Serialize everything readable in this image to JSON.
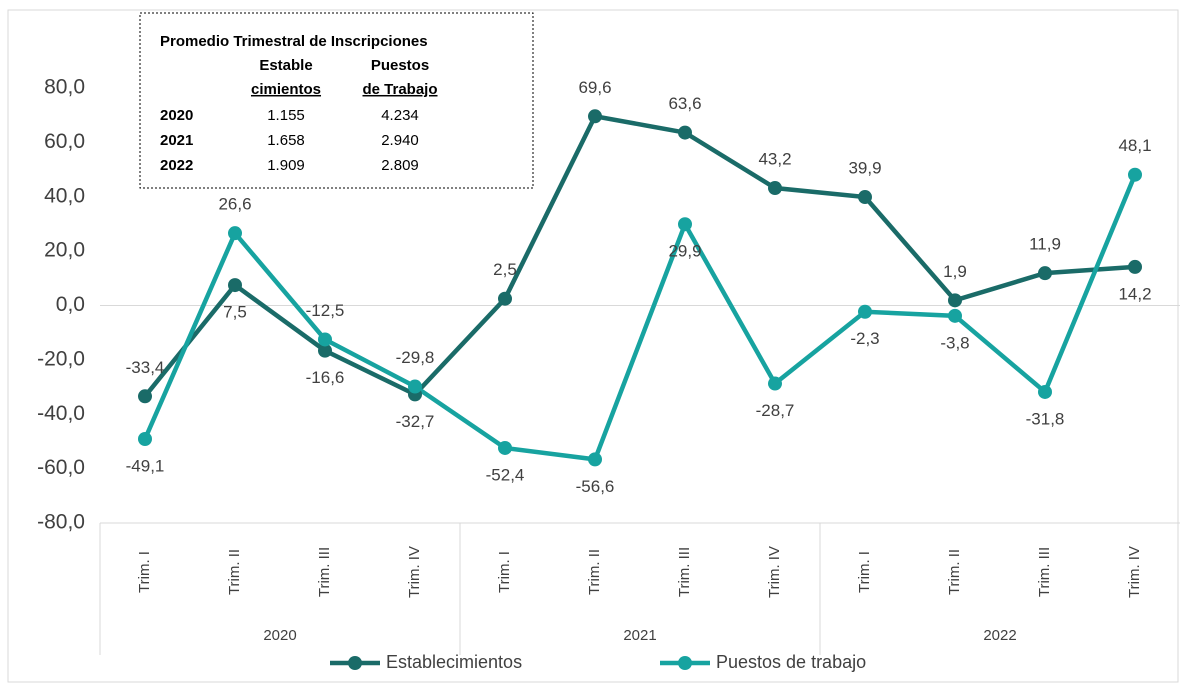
{
  "chart_data": {
    "type": "line",
    "categories": [
      "Trim. I",
      "Trim. II",
      "Trim. III",
      "Trim. IV",
      "Trim. I",
      "Trim. II",
      "Trim. III",
      "Trim. IV",
      "Trim. I",
      "Trim. II",
      "Trim. III",
      "Trim. IV"
    ],
    "groups": [
      "2020",
      "2021",
      "2022"
    ],
    "series": [
      {
        "name": "Establecimientos",
        "color": "#1a6b68",
        "values": [
          -33.4,
          7.5,
          -16.6,
          -32.7,
          2.5,
          69.6,
          63.6,
          43.2,
          39.9,
          1.9,
          11.9,
          14.2
        ],
        "value_labels": [
          "-33,4",
          "7,5",
          "-16,6",
          "-32,7",
          "2,5",
          "69,6",
          "63,6",
          "43,2",
          "39,9",
          "1,9",
          "11,9",
          "14,2"
        ]
      },
      {
        "name": "Puestos de trabajo",
        "color": "#17a3a0",
        "values": [
          -49.1,
          26.6,
          -12.5,
          -29.8,
          -52.4,
          -56.6,
          29.9,
          -28.7,
          -2.3,
          -3.8,
          -31.8,
          48.1
        ],
        "value_labels": [
          "-49,1",
          "26,6",
          "-12,5",
          "-29,8",
          "-52,4",
          "-56,6",
          "29,9",
          "-28,7",
          "-2,3",
          "-3,8",
          "-31,8",
          "48,1"
        ]
      }
    ],
    "ylim": [
      -80,
      80
    ],
    "yticks": [
      {
        "value": -80,
        "label": "-80,0"
      },
      {
        "value": -60,
        "label": "-60,0"
      },
      {
        "value": -40,
        "label": "-40,0"
      },
      {
        "value": -20,
        "label": "-20,0"
      },
      {
        "value": 0,
        "label": "0,0"
      },
      {
        "value": 20,
        "label": "20,0"
      },
      {
        "value": 40,
        "label": "40,0"
      },
      {
        "value": 60,
        "label": "60,0"
      },
      {
        "value": 80,
        "label": "80,0"
      }
    ],
    "grid": false,
    "legend": "bottom",
    "inset": {
      "title": "Promedio Trimestral de Inscripciones",
      "headers": [
        [
          "Estable",
          "cimientos"
        ],
        [
          "Puestos",
          "de Trabajo"
        ]
      ],
      "rows": [
        [
          "2020",
          "1.155",
          "4.234"
        ],
        [
          "2021",
          "1.658",
          "2.940"
        ],
        [
          "2022",
          "1.909",
          "2.809"
        ]
      ]
    }
  }
}
